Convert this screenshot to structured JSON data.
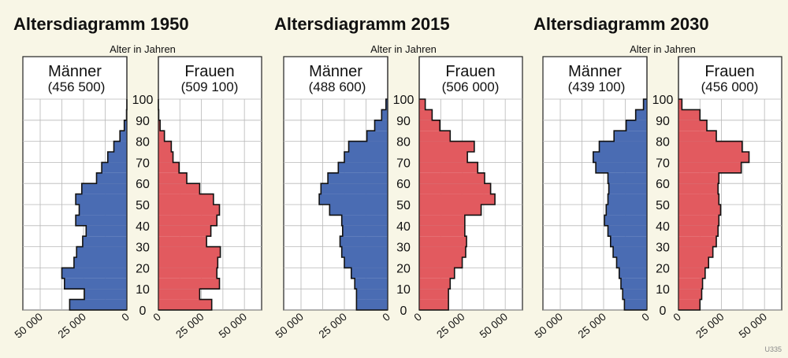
{
  "footer_code": "U335",
  "colors": {
    "male": "#4a6cb3",
    "female": "#e25a5f",
    "panel": "#ffffff",
    "grid": "#b8b8b8",
    "background": "#f8f6e6"
  },
  "chart_data": [
    {
      "type": "population-pyramid",
      "title": "Altersdiagramm 1950",
      "ylabel": "Alter in Jahren",
      "y_ticks": [
        0,
        10,
        20,
        30,
        40,
        50,
        60,
        70,
        80,
        90,
        100
      ],
      "x_tick_labels": [
        "50 000",
        "25 000",
        "0",
        "0",
        "25 000",
        "50 000"
      ],
      "xlim": [
        0,
        60000
      ],
      "grid": true,
      "male": {
        "label": "Männer",
        "total": "(456 500)"
      },
      "female": {
        "label": "Frauen",
        "total": "(509 100)"
      },
      "ages": [
        0,
        5,
        10,
        15,
        20,
        25,
        30,
        35,
        40,
        45,
        50,
        55,
        60,
        65,
        70,
        75,
        80,
        85,
        90,
        95
      ],
      "male_values": [
        33000,
        24500,
        36000,
        37500,
        30500,
        29000,
        25500,
        23500,
        29500,
        27500,
        29500,
        26000,
        17500,
        14500,
        11000,
        7500,
        4000,
        1500,
        200,
        0
      ],
      "female_values": [
        31000,
        24000,
        35500,
        34000,
        34500,
        36000,
        28000,
        30500,
        34000,
        35500,
        32000,
        24000,
        16500,
        12000,
        8500,
        7500,
        3500,
        1000,
        200,
        0
      ]
    },
    {
      "type": "population-pyramid",
      "title": "Altersdiagramm 2015",
      "ylabel": "Alter in Jahren",
      "y_ticks": [
        0,
        10,
        20,
        30,
        40,
        50,
        60,
        70,
        80,
        90,
        100
      ],
      "x_tick_labels": [
        "50 000",
        "25 000",
        "0",
        "0",
        "25 000",
        "50 000"
      ],
      "xlim": [
        0,
        60000
      ],
      "grid": true,
      "male": {
        "label": "Männer",
        "total": "(488 600)"
      },
      "female": {
        "label": "Frauen",
        "total": "(506 000)"
      },
      "ages": [
        0,
        5,
        10,
        15,
        20,
        25,
        30,
        35,
        40,
        45,
        50,
        55,
        60,
        65,
        70,
        75,
        80,
        85,
        90,
        95
      ],
      "male_values": [
        18000,
        18000,
        19000,
        21000,
        25000,
        26500,
        27500,
        26000,
        26500,
        33500,
        39500,
        38500,
        34500,
        28500,
        25000,
        22500,
        12000,
        7500,
        3500,
        1000
      ],
      "female_values": [
        17000,
        17000,
        18000,
        20500,
        25000,
        27000,
        27500,
        26500,
        26500,
        36000,
        44000,
        41500,
        38000,
        34000,
        28000,
        32000,
        18000,
        12000,
        7500,
        3500
      ]
    },
    {
      "type": "population-pyramid",
      "title": "Altersdiagramm 2030",
      "ylabel": "Alter in Jahren",
      "y_ticks": [
        0,
        10,
        20,
        30,
        40,
        50,
        60,
        70,
        80,
        90,
        100
      ],
      "x_tick_labels": [
        "50 000",
        "25 000",
        "0",
        "0",
        "25 000",
        "50 000"
      ],
      "xlim": [
        0,
        60000
      ],
      "grid": true,
      "male": {
        "label": "Männer",
        "total": "(439 100)"
      },
      "female": {
        "label": "Frauen",
        "total": "(456 000)"
      },
      "ages": [
        0,
        5,
        10,
        15,
        20,
        25,
        30,
        35,
        40,
        45,
        50,
        55,
        60,
        65,
        70,
        75,
        80,
        85,
        90,
        95
      ],
      "male_values": [
        13000,
        14000,
        15000,
        16000,
        17500,
        19500,
        21000,
        22500,
        24500,
        23500,
        22500,
        22000,
        22500,
        29500,
        31000,
        27500,
        19000,
        12000,
        6500,
        2000
      ],
      "female_values": [
        12500,
        13500,
        14000,
        15500,
        17500,
        20000,
        22000,
        23000,
        23500,
        24500,
        23500,
        23000,
        23500,
        36500,
        41000,
        37000,
        22000,
        16500,
        12500,
        2000
      ]
    }
  ]
}
